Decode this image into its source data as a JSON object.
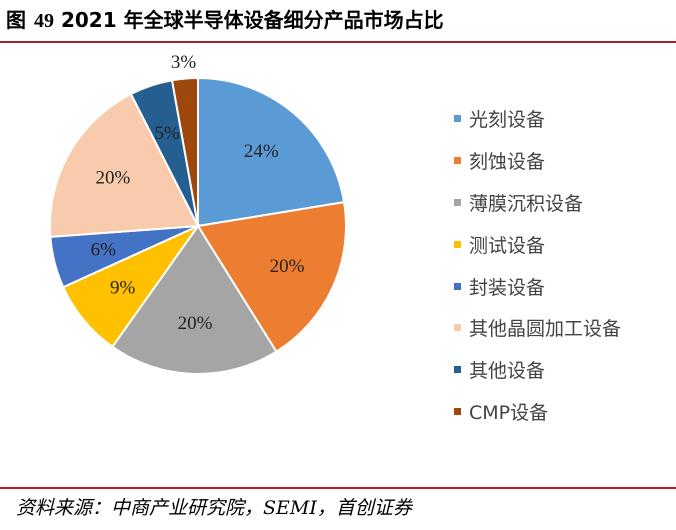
{
  "header": {
    "figure_label": "图",
    "figure_number": "49",
    "title_text": "2021 年全球半导体设备细分产品市场占比"
  },
  "chart_data": {
    "type": "pie",
    "title": "",
    "categories": [
      "光刻设备",
      "刻蚀设备",
      "薄膜沉积设备",
      "测试设备",
      "封装设备",
      "其他晶圆加工设备",
      "其他设备",
      "CMP设备"
    ],
    "values": [
      24,
      20,
      20,
      9,
      6,
      20,
      5,
      3
    ],
    "value_labels": [
      "24%",
      "20%",
      "20%",
      "9%",
      "6%",
      "20%",
      "5%",
      "3%"
    ],
    "colors": [
      "#5B9BD5",
      "#ED7D31",
      "#A5A5A5",
      "#FFC000",
      "#4472C4",
      "#F8CBAD",
      "#255E91",
      "#9E480E"
    ],
    "start_angle_deg": 0,
    "direction": "clockwise",
    "legend_position": "right"
  },
  "source": {
    "text": "资料来源：中商产业研究院，SEMI，首创证券"
  }
}
